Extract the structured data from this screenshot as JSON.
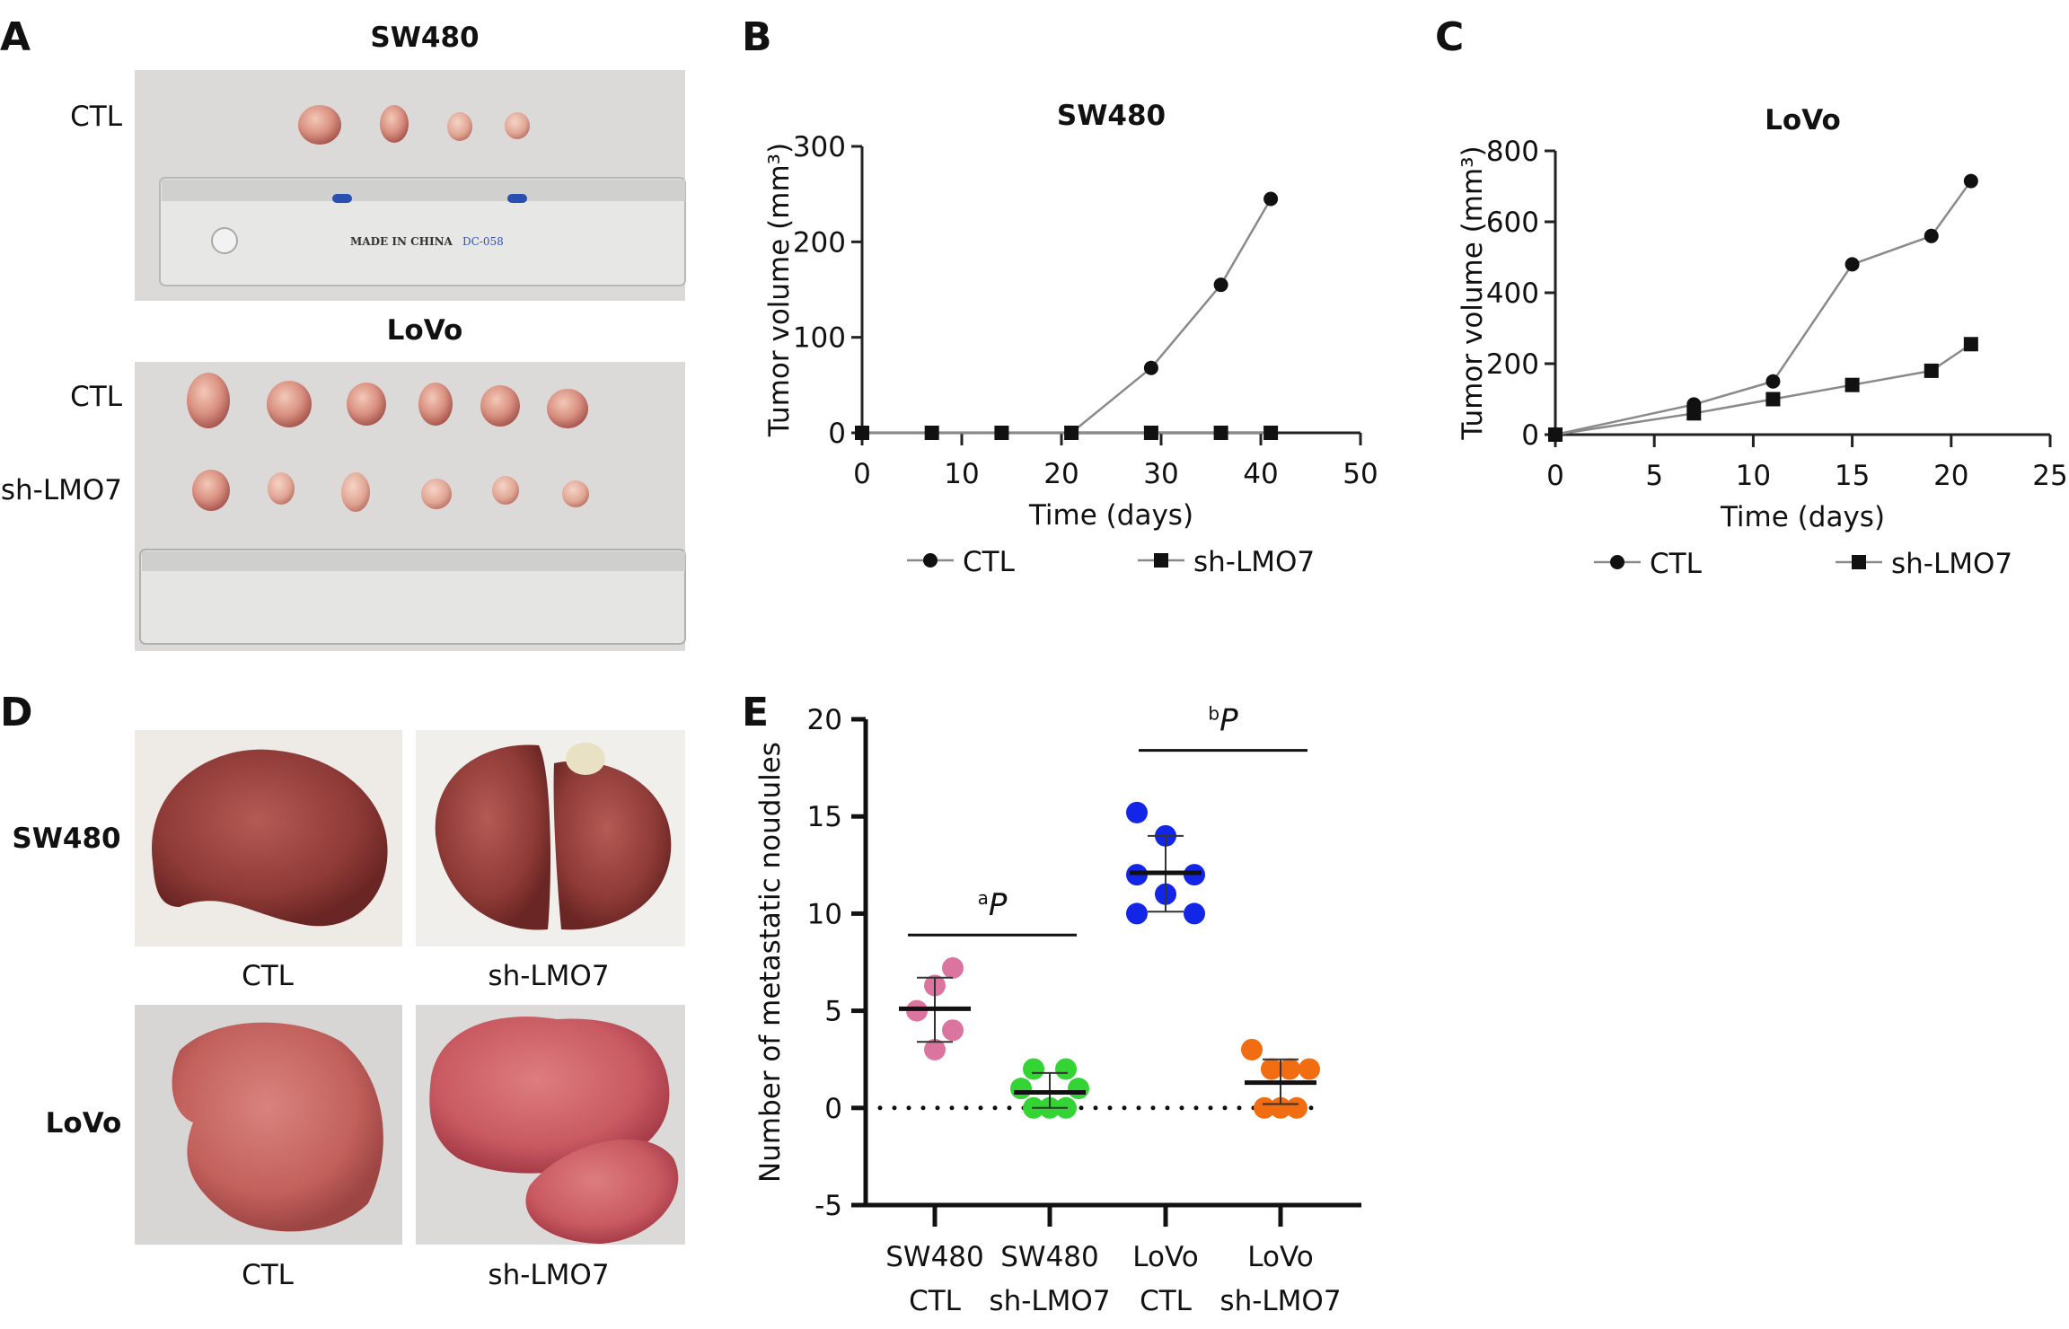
{
  "figure": {
    "panels": {
      "A": "A",
      "B": "B",
      "C": "C",
      "D": "D",
      "E": "E"
    },
    "panel_a": {
      "top_title": "SW480",
      "top_row_label": "CTL",
      "bottom_title": "LoVo",
      "bottom_row_labels": [
        "CTL",
        "sh-LMO7"
      ],
      "ruler_text": "MADE IN CHINA",
      "ruler_code": "DC-058"
    },
    "panel_d": {
      "row_labels": [
        "SW480",
        "LoVo"
      ],
      "column_labels": [
        "CTL",
        "sh-LMO7"
      ]
    }
  },
  "colors": {
    "line": "#8a8a8a",
    "sw480_ctl": "#dc74a0",
    "sw480_sh": "#33d433",
    "lovo_ctl": "#1326e8",
    "lovo_sh": "#f26c12"
  },
  "chart_data": [
    {
      "id": "B",
      "type": "line",
      "title": "SW480",
      "xlabel": "Time (days)",
      "ylabel": "Tumor volume (mm³)",
      "xlim": [
        0,
        50
      ],
      "ylim": [
        0,
        300
      ],
      "xticks": [
        0,
        10,
        20,
        30,
        40,
        50
      ],
      "yticks": [
        0,
        100,
        200,
        300
      ],
      "legend": "bottom",
      "grid": false,
      "series": [
        {
          "name": "CTL",
          "marker": "circle",
          "x": [
            0,
            7,
            14,
            21,
            29,
            36,
            41
          ],
          "y": [
            0,
            0,
            0,
            0,
            68,
            155,
            245
          ]
        },
        {
          "name": "sh-LMO7",
          "marker": "square",
          "x": [
            0,
            7,
            14,
            21,
            29,
            36,
            41
          ],
          "y": [
            0,
            0,
            0,
            0,
            0,
            0,
            0
          ]
        }
      ]
    },
    {
      "id": "C",
      "type": "line",
      "title": "LoVo",
      "xlabel": "Time (days)",
      "ylabel": "Tumor volume (mm³)",
      "xlim": [
        0,
        25
      ],
      "ylim": [
        0,
        800
      ],
      "xticks": [
        0,
        5,
        10,
        15,
        20,
        25
      ],
      "yticks": [
        0,
        200,
        400,
        600,
        800
      ],
      "legend": "bottom",
      "grid": false,
      "series": [
        {
          "name": "CTL",
          "marker": "circle",
          "x": [
            0,
            7,
            11,
            15,
            19,
            21
          ],
          "y": [
            0,
            85,
            150,
            480,
            560,
            715
          ]
        },
        {
          "name": "sh-LMO7",
          "marker": "square",
          "x": [
            0,
            7,
            11,
            15,
            19,
            21
          ],
          "y": [
            0,
            60,
            100,
            140,
            180,
            255
          ]
        }
      ]
    },
    {
      "id": "E",
      "type": "scatter",
      "ylabel": "Number of metastatic noudules",
      "ylim": [
        -5,
        20
      ],
      "yticks": [
        -5,
        0,
        5,
        10,
        15,
        20
      ],
      "reference_line": 0,
      "grid": false,
      "categories": [
        {
          "line1": "SW480",
          "line2": "CTL",
          "color": "#dc74a0",
          "values": [
            7.2,
            6.3,
            5,
            4,
            3
          ],
          "mean": 5.1,
          "sd_low": 3.4,
          "sd_high": 6.7
        },
        {
          "line1": "SW480",
          "line2": "sh-LMO7",
          "color": "#33d433",
          "values": [
            2,
            2,
            1,
            1,
            0,
            0,
            0
          ],
          "mean": 0.8,
          "sd_low": 0,
          "sd_high": 1.8
        },
        {
          "line1": "LoVo",
          "line2": "CTL",
          "color": "#1326e8",
          "values": [
            15.2,
            14,
            12,
            12,
            11,
            10,
            10
          ],
          "mean": 12.1,
          "sd_low": 10.1,
          "sd_high": 14
        },
        {
          "line1": "LoVo",
          "line2": "sh-LMO7",
          "color": "#f26c12",
          "values": [
            3,
            2,
            2,
            2,
            0,
            0,
            0
          ],
          "mean": 1.3,
          "sd_low": 0.2,
          "sd_high": 2.5
        }
      ],
      "comparisons": [
        {
          "groups": [
            0,
            1
          ],
          "sup": "a",
          "text": "P",
          "y": 8.9
        },
        {
          "groups": [
            2,
            3
          ],
          "sup": "b",
          "text": "P",
          "y": 18.4
        }
      ]
    }
  ]
}
